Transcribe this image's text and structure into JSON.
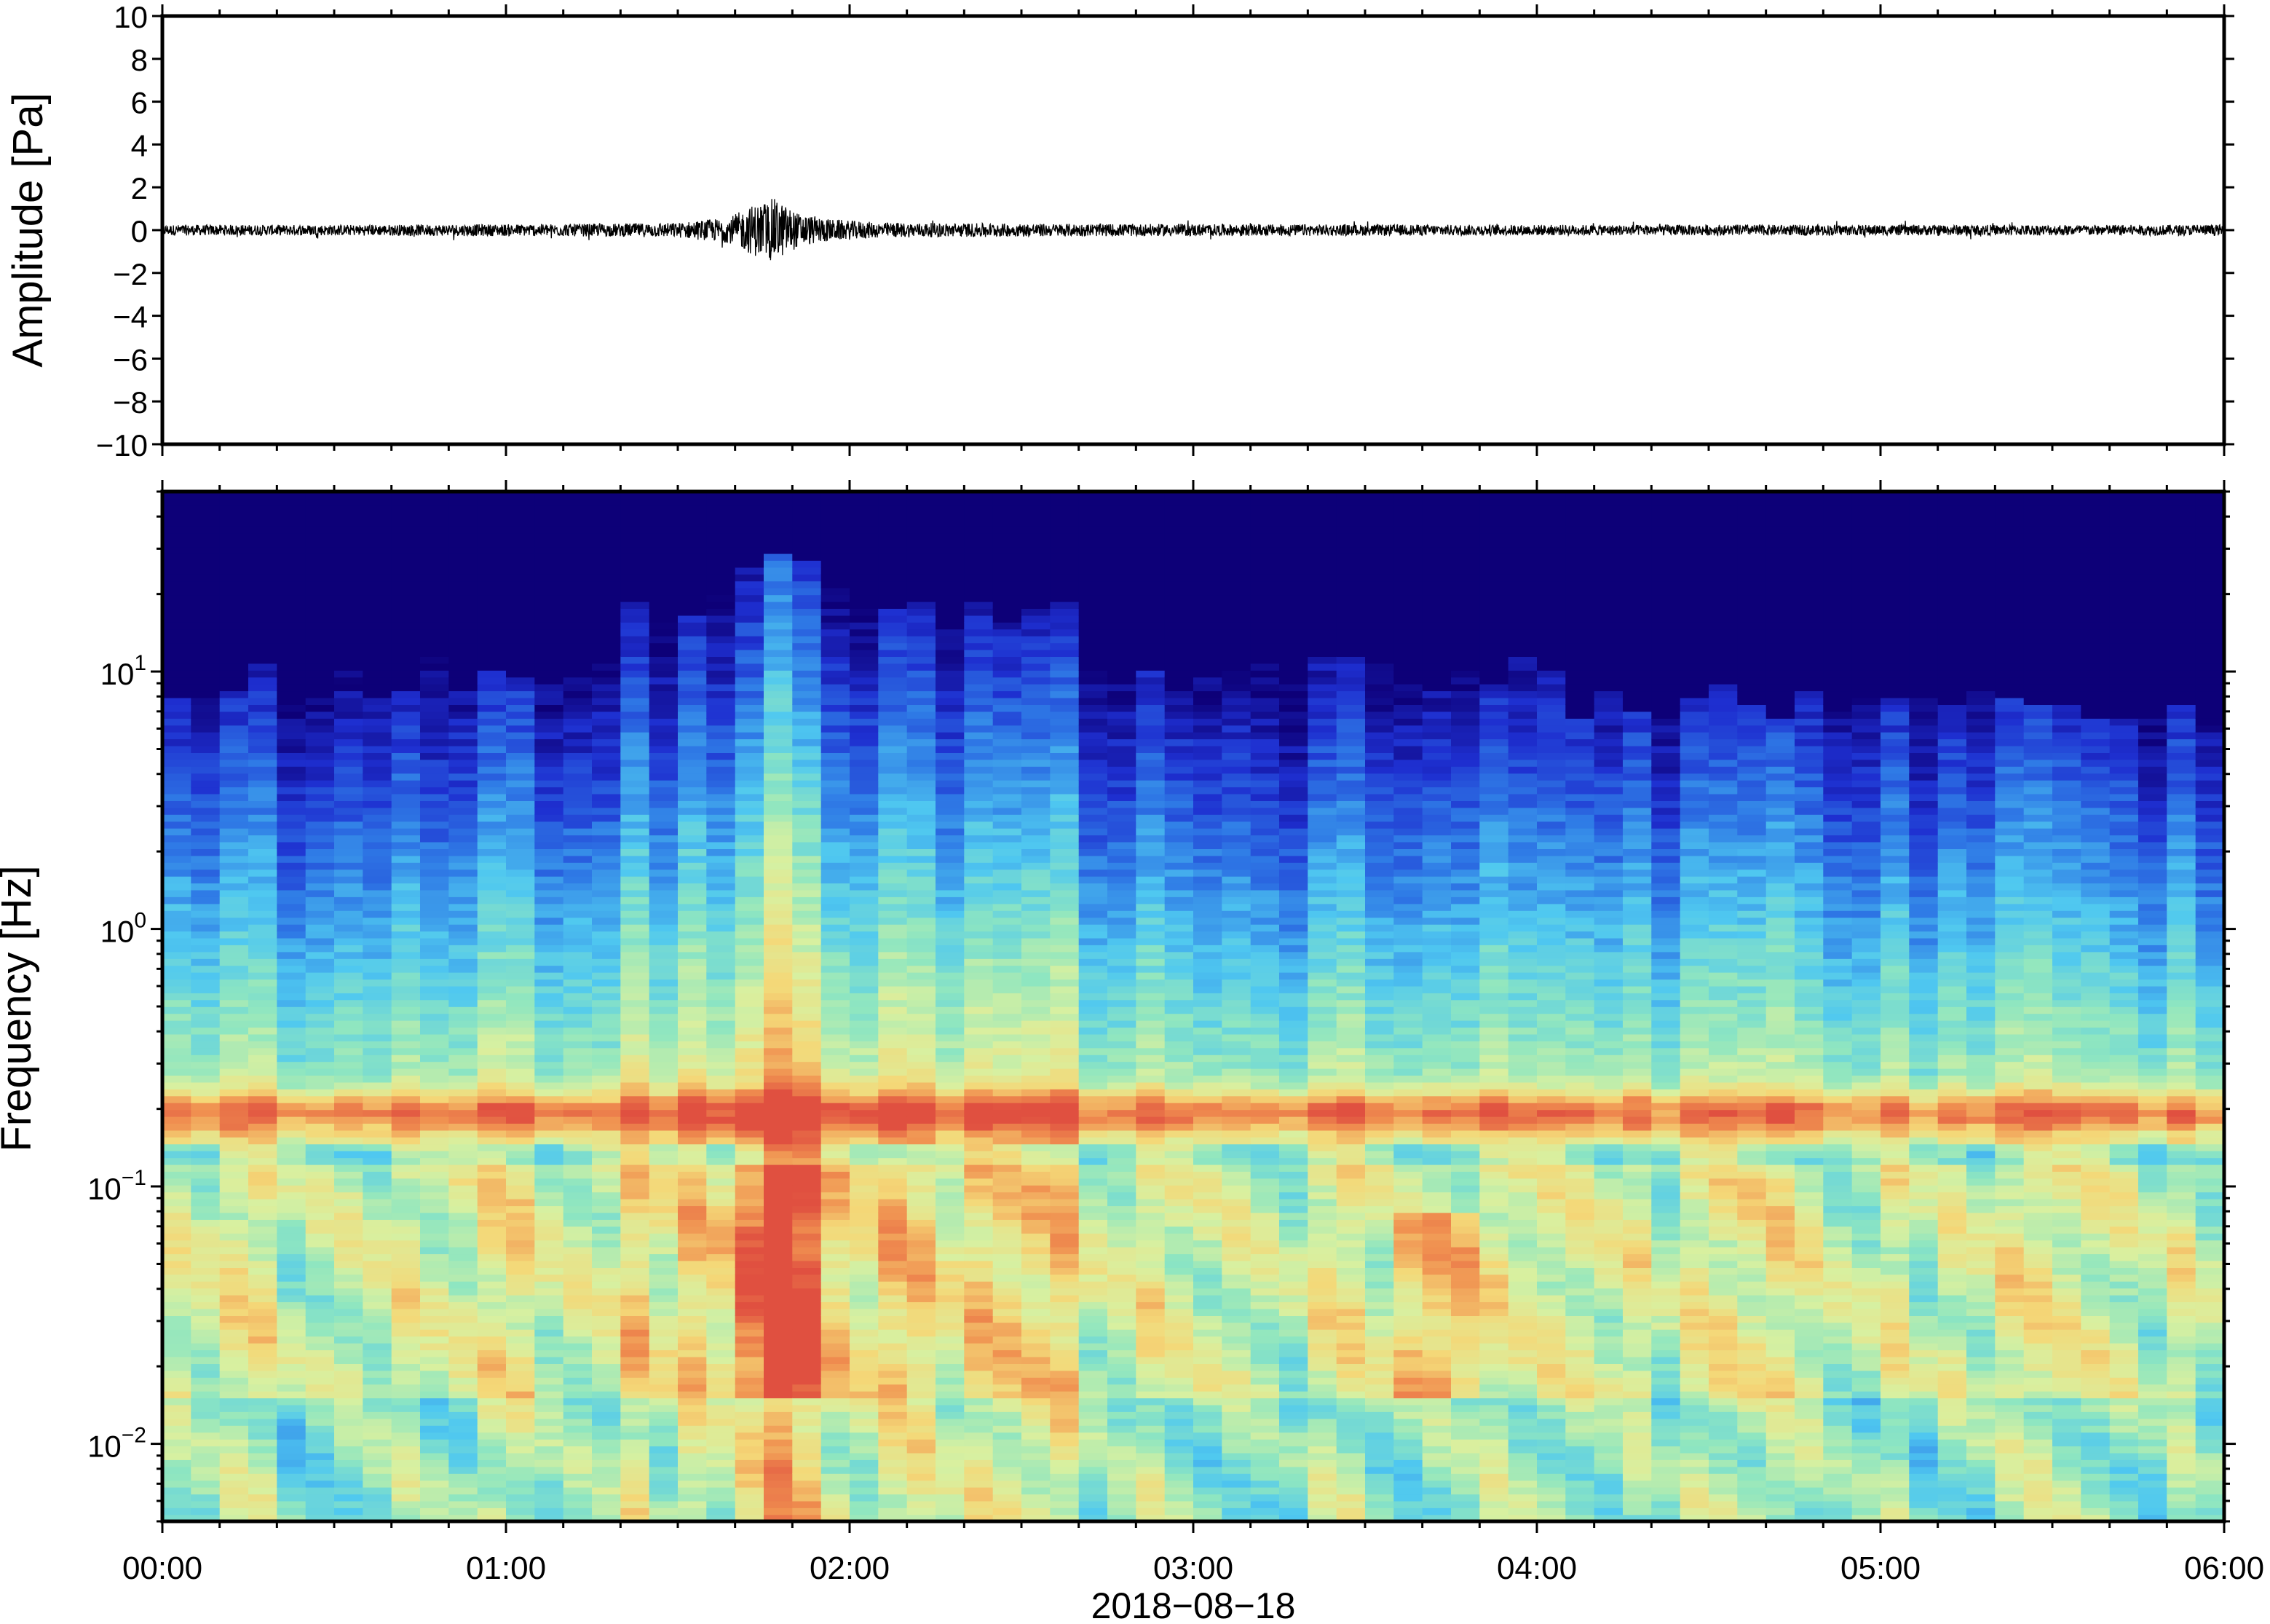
{
  "chart_data": [
    {
      "type": "line",
      "title": "",
      "xlabel": "",
      "ylabel": "Amplitude [Pa]",
      "ylim": [
        -10,
        10
      ],
      "yticks": [
        10,
        8,
        6,
        4,
        2,
        0,
        -2,
        -4,
        -6,
        -8,
        -10
      ],
      "ytick_labels": [
        "10",
        "8",
        "6",
        "4",
        "2",
        "0",
        "−2",
        "−4",
        "−6",
        "−8",
        "−10"
      ],
      "x_range": [
        "00:00",
        "06:00"
      ],
      "grid": false,
      "series": [
        {
          "color": "#000000",
          "envelope": {
            "x_hours": [
              0.0,
              0.5,
              1.0,
              1.3,
              1.5,
              1.65,
              1.72,
              1.78,
              1.85,
              1.95,
              2.1,
              2.5,
              3.0,
              3.5,
              4.0,
              4.5,
              5.0,
              5.5,
              6.0
            ],
            "amplitude_pa": [
              0.25,
              0.25,
              0.28,
              0.3,
              0.35,
              0.6,
              1.2,
              1.5,
              0.8,
              0.5,
              0.35,
              0.3,
              0.28,
              0.26,
              0.25,
              0.25,
              0.25,
              0.25,
              0.25
            ]
          }
        }
      ]
    },
    {
      "type": "heatmap",
      "title": "",
      "xlabel": "2018−08−18",
      "ylabel": "Frequency [Hz]",
      "y_scale": "log",
      "ylim": [
        0.005,
        50
      ],
      "ytick_labels": [
        {
          "base": "10",
          "exp": "−2",
          "value": 0.01
        },
        {
          "base": "10",
          "exp": "−1",
          "value": 0.1
        },
        {
          "base": "10",
          "exp": "0",
          "value": 1
        },
        {
          "base": "10",
          "exp": "1",
          "value": 10
        }
      ],
      "xticks": [
        "00:00",
        "01:00",
        "02:00",
        "03:00",
        "04:00",
        "05:00",
        "06:00"
      ],
      "colormap": [
        "#0d0078",
        "#1e2fd0",
        "#2f7be6",
        "#4fc8f0",
        "#8fe6c0",
        "#d8f0a0",
        "#f4d878",
        "#f09050",
        "#e05040"
      ],
      "features": {
        "microbarom_band_hz": [
          0.15,
          0.25
        ],
        "event_time_hours": 1.8,
        "event_max_freq_hz": 30
      }
    }
  ]
}
